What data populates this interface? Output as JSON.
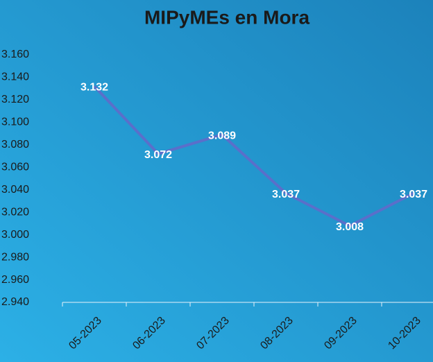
{
  "chart_data": {
    "type": "line",
    "title": "MIPyMEs en Mora",
    "categories": [
      "05-2023",
      "06-2023",
      "07-2023",
      "08-2023",
      "09-2023",
      "10-2023"
    ],
    "series": [
      {
        "name": "MIPyMEs en Mora",
        "color": "#5a6fca",
        "values": [
          3132,
          3072,
          3089,
          3037,
          3008,
          3037
        ],
        "value_labels": [
          "3.132",
          "3.072",
          "3.089",
          "3.037",
          "3.008",
          "3.037"
        ]
      }
    ],
    "ylim": [
      2940,
      3160
    ],
    "yticks": [
      {
        "value": 2940,
        "label": "2.940"
      },
      {
        "value": 2960,
        "label": "2.960"
      },
      {
        "value": 2980,
        "label": "2.980"
      },
      {
        "value": 3000,
        "label": "3.000"
      },
      {
        "value": 3020,
        "label": "3.020"
      },
      {
        "value": 3040,
        "label": "3.040"
      },
      {
        "value": 3060,
        "label": "3.060"
      },
      {
        "value": 3080,
        "label": "3.080"
      },
      {
        "value": 3100,
        "label": "3.100"
      },
      {
        "value": 3120,
        "label": "3.120"
      },
      {
        "value": 3140,
        "label": "3.140"
      },
      {
        "value": 3160,
        "label": "3.160"
      }
    ],
    "grid": false
  }
}
